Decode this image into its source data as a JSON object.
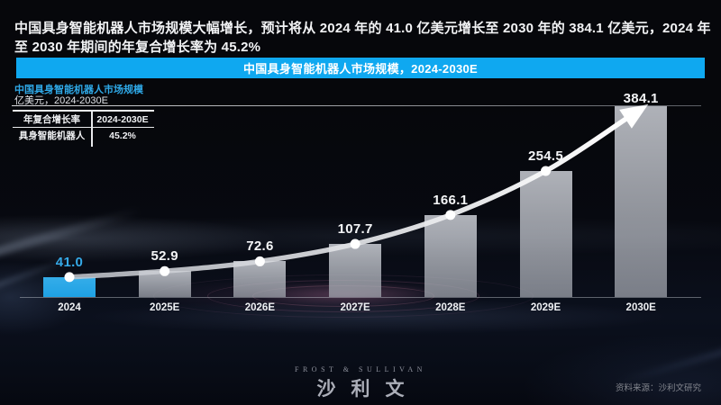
{
  "header": {
    "title": "中国具身智能机器人市场规模大幅增长，预计将从 2024 年的 41.0 亿美元增长至 2030 年的 384.1 亿美元，2024 年至 2030 年期间的年复合增长率为 45.2%"
  },
  "banner": {
    "title": "中国具身智能机器人市场规模，2024-2030E",
    "bg_color": "#0FA8F0"
  },
  "chart_header": {
    "title": "中国具身智能机器人市场规模",
    "unit_line": "亿美元，2024-2030E"
  },
  "cagr_table": {
    "header": [
      "年复合增长率",
      "2024-2030E"
    ],
    "row": [
      "具身智能机器人",
      "45.2%"
    ]
  },
  "chart_data": {
    "type": "bar",
    "title": "中国具身智能机器人市场规模，2024-2030E",
    "ylabel": "亿美元",
    "categories": [
      "2024",
      "2025E",
      "2026E",
      "2027E",
      "2028E",
      "2029E",
      "2030E"
    ],
    "values": [
      41.0,
      52.9,
      72.6,
      107.7,
      166.1,
      254.5,
      384.1
    ],
    "cagr_2024_2030": "45.2%",
    "highlight_index": 0,
    "highlight_color": "#29A9E8",
    "bar_color": "#A9ADB5",
    "value_label_color": "#F4F5F7",
    "highlight_label_color": "#35AAE8",
    "trend_line": {
      "shape": "smooth",
      "color": "#FFFFFF",
      "dots": true,
      "arrow_end": true
    },
    "ylim": [
      0,
      400
    ],
    "grid": false,
    "legend": null
  },
  "footer": {
    "logo_en": "FROST & SULLIVAN",
    "logo_cn": "沙利文",
    "source": "资料来源：沙利文研究"
  }
}
